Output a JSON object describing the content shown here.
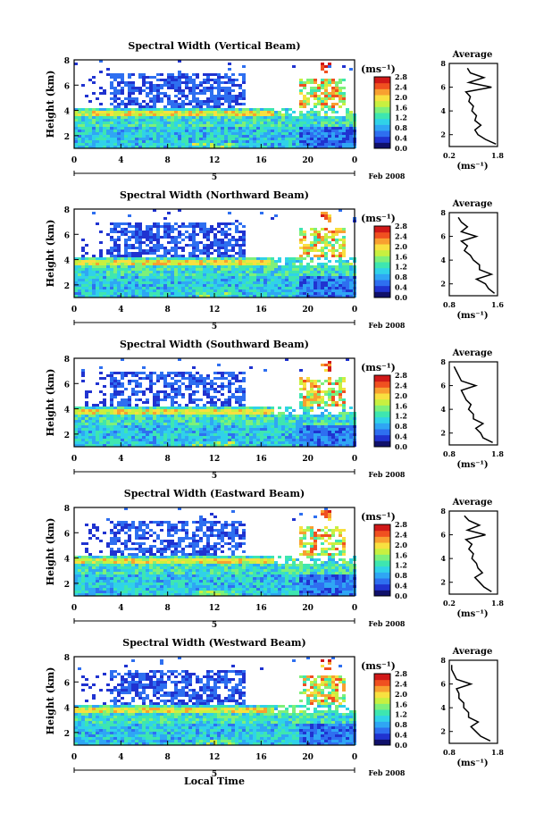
{
  "figure": {
    "xlabel": "Local Time",
    "date_label": "Feb 2008",
    "day_label": "5",
    "height_label": "Height (km)",
    "unit_label": "(ms⁻¹)",
    "average_title": "Average",
    "avg_xlabel": "(ms⁻¹)",
    "x_ticks": [
      "0",
      "4",
      "8",
      "12",
      "16",
      "20",
      "0"
    ],
    "y_ticks": [
      "2",
      "4",
      "6",
      "8"
    ],
    "avg_y_ticks": [
      "2",
      "4",
      "6",
      "8"
    ],
    "colorbar_ticks": [
      "0.0",
      "0.4",
      "0.8",
      "1.2",
      "1.6",
      "2.0",
      "2.4",
      "2.8"
    ]
  },
  "colors": {
    "scale": [
      "#10106a",
      "#2033d0",
      "#2e6ff0",
      "#2fa6f4",
      "#30d2e8",
      "#3ee6b0",
      "#7ef07a",
      "#c8f040",
      "#f8e040",
      "#f8a030",
      "#f05020",
      "#d01818"
    ]
  },
  "chart_data": [
    {
      "type": "heatmap",
      "title": "Spectral Width (Vertical Beam)",
      "xlabel": "Local Time",
      "ylabel": "Height (km)",
      "xlim": [
        0,
        24
      ],
      "ylim": [
        1,
        8
      ],
      "colorbar_range": [
        0,
        2.8
      ],
      "colorbar_unit": "(ms⁻¹)",
      "date": "Feb 2008",
      "day": "5",
      "average_profile": {
        "title": "Average",
        "xlabel": "(ms⁻¹)",
        "x_ticks": [
          "0.2",
          "1.8"
        ],
        "xlim": [
          0.2,
          1.8
        ],
        "heights": [
          1.2,
          1.6,
          2.0,
          2.4,
          2.8,
          3.2,
          3.6,
          4.0,
          4.4,
          4.8,
          5.2,
          5.6,
          6.0,
          6.4,
          6.8,
          7.2,
          7.6
        ],
        "values": [
          1.75,
          1.4,
          1.15,
          1.05,
          1.25,
          1.05,
          1.1,
          0.95,
          1.0,
          0.85,
          0.9,
          0.75,
          1.6,
          0.85,
          1.35,
          0.9,
          0.8
        ]
      }
    },
    {
      "type": "heatmap",
      "title": "Spectral Width (Northward Beam)",
      "xlabel": "Local Time",
      "ylabel": "Height (km)",
      "xlim": [
        0,
        24
      ],
      "ylim": [
        1,
        8
      ],
      "colorbar_range": [
        0,
        2.8
      ],
      "colorbar_unit": "(ms⁻¹)",
      "date": "Feb 2008",
      "day": "5",
      "average_profile": {
        "title": "Average",
        "xlabel": "(ms⁻¹)",
        "x_ticks": [
          "0.8",
          "1.6"
        ],
        "xlim": [
          0.8,
          1.6
        ],
        "heights": [
          1.2,
          1.6,
          2.0,
          2.4,
          2.8,
          3.2,
          3.6,
          4.0,
          4.4,
          4.8,
          5.2,
          5.6,
          6.0,
          6.4,
          6.8,
          7.2,
          7.6
        ],
        "values": [
          1.55,
          1.45,
          1.4,
          1.25,
          1.5,
          1.3,
          1.3,
          1.2,
          1.15,
          1.05,
          1.1,
          1.0,
          1.25,
          1.0,
          1.1,
          1.0,
          0.95
        ]
      }
    },
    {
      "type": "heatmap",
      "title": "Spectral Width (Southward Beam)",
      "xlabel": "Local Time",
      "ylabel": "Height (km)",
      "xlim": [
        0,
        24
      ],
      "ylim": [
        1,
        8
      ],
      "colorbar_range": [
        0,
        2.8
      ],
      "colorbar_unit": "(ms⁻¹)",
      "date": "Feb 2008",
      "day": "5",
      "average_profile": {
        "title": "Average",
        "xlabel": "(ms⁻¹)",
        "x_ticks": [
          "0.8",
          "1.8"
        ],
        "xlim": [
          0.8,
          1.8
        ],
        "heights": [
          1.2,
          1.6,
          2.0,
          2.4,
          2.8,
          3.2,
          3.6,
          4.0,
          4.4,
          4.8,
          5.2,
          5.6,
          6.0,
          6.4,
          6.8,
          7.2,
          7.6
        ],
        "values": [
          1.7,
          1.5,
          1.45,
          1.35,
          1.5,
          1.3,
          1.3,
          1.2,
          1.25,
          1.15,
          1.1,
          1.05,
          1.35,
          1.05,
          1.0,
          0.95,
          0.9
        ]
      }
    },
    {
      "type": "heatmap",
      "title": "Spectral Width (Eastward Beam)",
      "xlabel": "Local Time",
      "ylabel": "Height (km)",
      "xlim": [
        0,
        24
      ],
      "ylim": [
        1,
        8
      ],
      "colorbar_range": [
        0,
        2.8
      ],
      "colorbar_unit": "(ms⁻¹)",
      "date": "Feb 2008",
      "day": "5",
      "average_profile": {
        "title": "Average",
        "xlabel": "(ms⁻¹)",
        "x_ticks": [
          "0.2",
          "1.8"
        ],
        "xlim": [
          0.2,
          1.8
        ],
        "heights": [
          1.2,
          1.6,
          2.0,
          2.4,
          2.8,
          3.2,
          3.6,
          4.0,
          4.4,
          4.8,
          5.2,
          5.6,
          6.0,
          6.4,
          6.8,
          7.2,
          7.6
        ],
        "values": [
          1.6,
          1.35,
          1.2,
          1.05,
          1.3,
          1.15,
          1.1,
          0.95,
          1.0,
          0.85,
          0.95,
          0.75,
          1.4,
          0.8,
          1.2,
          0.85,
          0.7
        ]
      }
    },
    {
      "type": "heatmap",
      "title": "Spectral Width (Westward Beam)",
      "xlabel": "Local Time",
      "ylabel": "Height (km)",
      "xlim": [
        0,
        24
      ],
      "ylim": [
        1,
        8
      ],
      "colorbar_range": [
        0,
        2.8
      ],
      "colorbar_unit": "(ms⁻¹)",
      "date": "Feb 2008",
      "day": "5",
      "average_profile": {
        "title": "Average",
        "xlabel": "(ms⁻¹)",
        "x_ticks": [
          "0.8",
          "1.8"
        ],
        "xlim": [
          0.8,
          1.8
        ],
        "heights": [
          1.2,
          1.6,
          2.0,
          2.4,
          2.8,
          3.2,
          3.6,
          4.0,
          4.4,
          4.8,
          5.2,
          5.6,
          6.0,
          6.4,
          6.8,
          7.2,
          7.6
        ],
        "values": [
          1.65,
          1.45,
          1.35,
          1.25,
          1.4,
          1.2,
          1.2,
          1.1,
          1.1,
          1.0,
          1.0,
          0.95,
          1.25,
          0.95,
          0.9,
          0.85,
          0.85
        ]
      }
    }
  ]
}
